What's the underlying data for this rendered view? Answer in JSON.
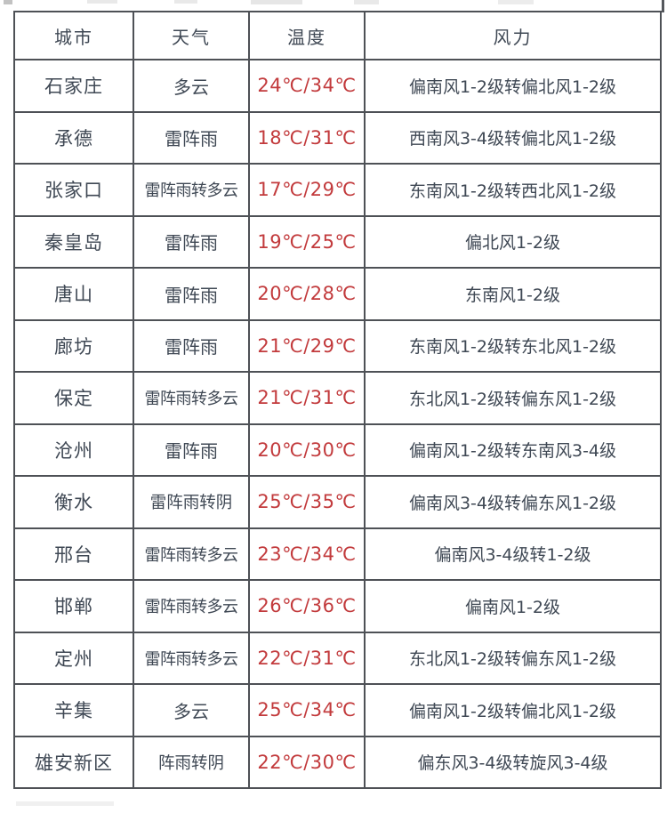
{
  "colors": {
    "text": "#3f4854",
    "temperature": "#c23a3c",
    "border": "#4e5156",
    "cell_background": "#ffffff",
    "page_background": "#ffffff"
  },
  "table": {
    "headers": {
      "city": "城市",
      "weather": "天气",
      "temp": "温度",
      "wind": "风力"
    },
    "rows": [
      {
        "city": "石家庄",
        "weather": "多云",
        "temp": "24℃/34℃",
        "wind": "偏南风1-2级转偏北风1-2级"
      },
      {
        "city": "承德",
        "weather": "雷阵雨",
        "temp": "18℃/31℃",
        "wind": "西南风3-4级转偏北风1-2级"
      },
      {
        "city": "张家口",
        "weather": "雷阵雨转多云",
        "temp": "17℃/29℃",
        "wind": "东南风1-2级转西北风1-2级"
      },
      {
        "city": "秦皇岛",
        "weather": "雷阵雨",
        "temp": "19℃/25℃",
        "wind": "偏北风1-2级"
      },
      {
        "city": "唐山",
        "weather": "雷阵雨",
        "temp": "20℃/28℃",
        "wind": "东南风1-2级"
      },
      {
        "city": "廊坊",
        "weather": "雷阵雨",
        "temp": "21℃/29℃",
        "wind": "东南风1-2级转东北风1-2级"
      },
      {
        "city": "保定",
        "weather": "雷阵雨转多云",
        "temp": "21℃/31℃",
        "wind": "东北风1-2级转偏东风1-2级"
      },
      {
        "city": "沧州",
        "weather": "雷阵雨",
        "temp": "20℃/30℃",
        "wind": "偏南风1-2级转东南风3-4级"
      },
      {
        "city": "衡水",
        "weather": "雷阵雨转阴",
        "temp": "25℃/35℃",
        "wind": "偏南风3-4级转偏东风1-2级"
      },
      {
        "city": "邢台",
        "weather": "雷阵雨转多云",
        "temp": "23℃/34℃",
        "wind": "偏南风3-4级转1-2级"
      },
      {
        "city": "邯郸",
        "weather": "雷阵雨转多云",
        "temp": "26℃/36℃",
        "wind": "偏南风1-2级"
      },
      {
        "city": "定州",
        "weather": "雷阵雨转多云",
        "temp": "22℃/31℃",
        "wind": "东北风1-2级转偏东风1-2级"
      },
      {
        "city": "辛集",
        "weather": "多云",
        "temp": "25℃/34℃",
        "wind": "偏南风1-2级转偏北风1-2级"
      },
      {
        "city": "雄安新区",
        "weather": "阵雨转阴",
        "temp": "22℃/30℃",
        "wind": "偏东风3-4级转旋风3-4级"
      }
    ]
  },
  "chart_data": {
    "type": "table",
    "title": "",
    "columns": [
      "城市",
      "天气",
      "温度",
      "风力"
    ],
    "rows": [
      [
        "石家庄",
        "多云",
        "24℃/34℃",
        "偏南风1-2级转偏北风1-2级"
      ],
      [
        "承德",
        "雷阵雨",
        "18℃/31℃",
        "西南风3-4级转偏北风1-2级"
      ],
      [
        "张家口",
        "雷阵雨转多云",
        "17℃/29℃",
        "东南风1-2级转西北风1-2级"
      ],
      [
        "秦皇岛",
        "雷阵雨",
        "19℃/25℃",
        "偏北风1-2级"
      ],
      [
        "唐山",
        "雷阵雨",
        "20℃/28℃",
        "东南风1-2级"
      ],
      [
        "廊坊",
        "雷阵雨",
        "21℃/29℃",
        "东南风1-2级转东北风1-2级"
      ],
      [
        "保定",
        "雷阵雨转多云",
        "21℃/31℃",
        "东北风1-2级转偏东风1-2级"
      ],
      [
        "沧州",
        "雷阵雨",
        "20℃/30℃",
        "偏南风1-2级转东南风3-4级"
      ],
      [
        "衡水",
        "雷阵雨转阴",
        "25℃/35℃",
        "偏南风3-4级转偏东风1-2级"
      ],
      [
        "邢台",
        "雷阵雨转多云",
        "23℃/34℃",
        "偏南风3-4级转1-2级"
      ],
      [
        "邯郸",
        "雷阵雨转多云",
        "26℃/36℃",
        "偏南风1-2级"
      ],
      [
        "定州",
        "雷阵雨转多云",
        "22℃/31℃",
        "东北风1-2级转偏东风1-2级"
      ],
      [
        "辛集",
        "多云",
        "25℃/34℃",
        "偏南风1-2级转偏北风1-2级"
      ],
      [
        "雄安新区",
        "阵雨转阴",
        "22℃/30℃",
        "偏东风3-4级转旋风3-4级"
      ]
    ],
    "notes": "Hebei province city weather forecast table; temperature column rendered in red"
  }
}
